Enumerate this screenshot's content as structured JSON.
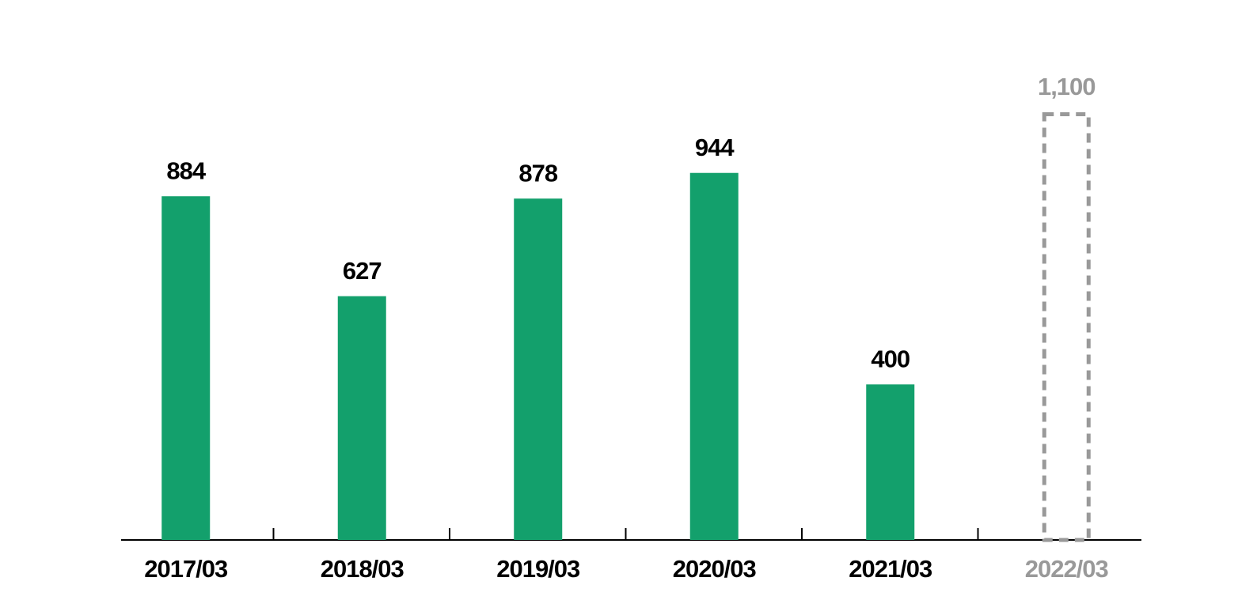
{
  "chart_data": {
    "type": "bar",
    "categories": [
      "2017/03",
      "2018/03",
      "2019/03",
      "2020/03",
      "2021/03",
      "2022/03"
    ],
    "values": [
      884,
      627,
      878,
      944,
      400,
      1100
    ],
    "value_labels": [
      "884",
      "627",
      "878",
      "944",
      "400",
      "1,100"
    ],
    "bar_styles": [
      "solid",
      "solid",
      "solid",
      "solid",
      "solid",
      "dashed"
    ],
    "color": "#13a06c",
    "dashed_color": "#999999",
    "ylim": [
      0,
      1100
    ]
  }
}
